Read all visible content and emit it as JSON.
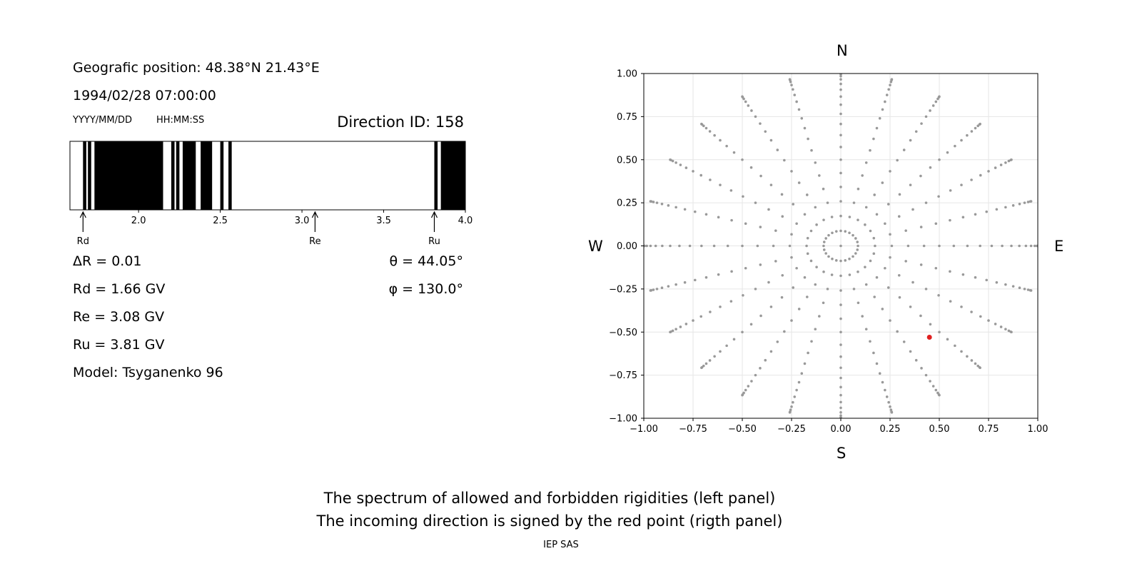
{
  "left_panel": {
    "geo_position": "Geografic position: 48.38°N 21.43°E",
    "datetime": "1994/02/28 07:00:00",
    "date_format": "YYYY/MM/DD",
    "time_format": "HH:MM:SS",
    "direction_id": "Direction ID: 158",
    "delta_r": "ΔR = 0.01",
    "rd": "Rd = 1.66 GV",
    "re": "Re = 3.08 GV",
    "ru": "Ru = 3.81 GV",
    "model": "Model: Tsyganenko 96",
    "theta": "θ = 44.05°",
    "phi": "φ = 130.0°"
  },
  "compass": {
    "n": "N",
    "s": "S",
    "w": "W",
    "e": "E"
  },
  "caption": {
    "line1": "The spectrum of allowed and forbidden rigidities (left panel)",
    "line2": "The incoming direction is signed by the red point (rigth panel)",
    "credit": "IEP SAS"
  },
  "chart_data": [
    {
      "type": "spectrum",
      "xlim": [
        1.58,
        4.0
      ],
      "x_ticks": [
        2.0,
        2.5,
        3.0,
        3.5,
        4.0
      ],
      "x_tick_labels": [
        "2.0",
        "2.5",
        "3.0",
        "3.5",
        "4.0"
      ],
      "forbidden_bands": [
        [
          1.66,
          1.68
        ],
        [
          1.69,
          1.71
        ],
        [
          1.73,
          2.15
        ],
        [
          2.2,
          2.22
        ],
        [
          2.23,
          2.25
        ],
        [
          2.27,
          2.35
        ],
        [
          2.38,
          2.45
        ],
        [
          2.5,
          2.52
        ],
        [
          2.55,
          2.57
        ],
        [
          3.81,
          3.83
        ],
        [
          3.85,
          4.0
        ]
      ],
      "markers": [
        {
          "label": "Rd",
          "value": 1.66
        },
        {
          "label": "Re",
          "value": 3.08
        },
        {
          "label": "Ru",
          "value": 3.81
        }
      ],
      "colors": {
        "forbidden": "#000000",
        "allowed": "#ffffff"
      }
    },
    {
      "type": "scatter",
      "xlim": [
        -1.0,
        1.0
      ],
      "ylim": [
        -1.0,
        1.0
      ],
      "x_ticks": [
        -1.0,
        -0.75,
        -0.5,
        -0.25,
        0.0,
        0.25,
        0.5,
        0.75,
        1.0
      ],
      "y_ticks": [
        -1.0,
        -0.75,
        -0.5,
        -0.25,
        0.0,
        0.25,
        0.5,
        0.75,
        1.0
      ],
      "x_tick_labels": [
        "−1.00",
        "−0.75",
        "−0.50",
        "−0.25",
        "0.00",
        "0.25",
        "0.50",
        "0.75",
        "1.00"
      ],
      "y_tick_labels": [
        "−1.00",
        "−0.75",
        "−0.50",
        "−0.25",
        "0.00",
        "0.25",
        "0.50",
        "0.75",
        "1.00"
      ],
      "grid": true,
      "direction_grid": {
        "zenith_angles_deg": [
          0,
          5,
          10,
          15,
          20,
          25,
          30,
          35,
          40,
          45,
          50,
          55,
          60,
          65,
          70,
          75,
          80,
          85,
          90
        ],
        "azimuth_step_deg": 15,
        "ring_point_counts": {
          "15": 24,
          "25": 24,
          "30": 24
        },
        "color": "#999999"
      },
      "selected_point": {
        "x": 0.45,
        "y": -0.53,
        "theta_deg": 44.05,
        "phi_deg": 130.0,
        "color": "#e02020"
      }
    }
  ]
}
